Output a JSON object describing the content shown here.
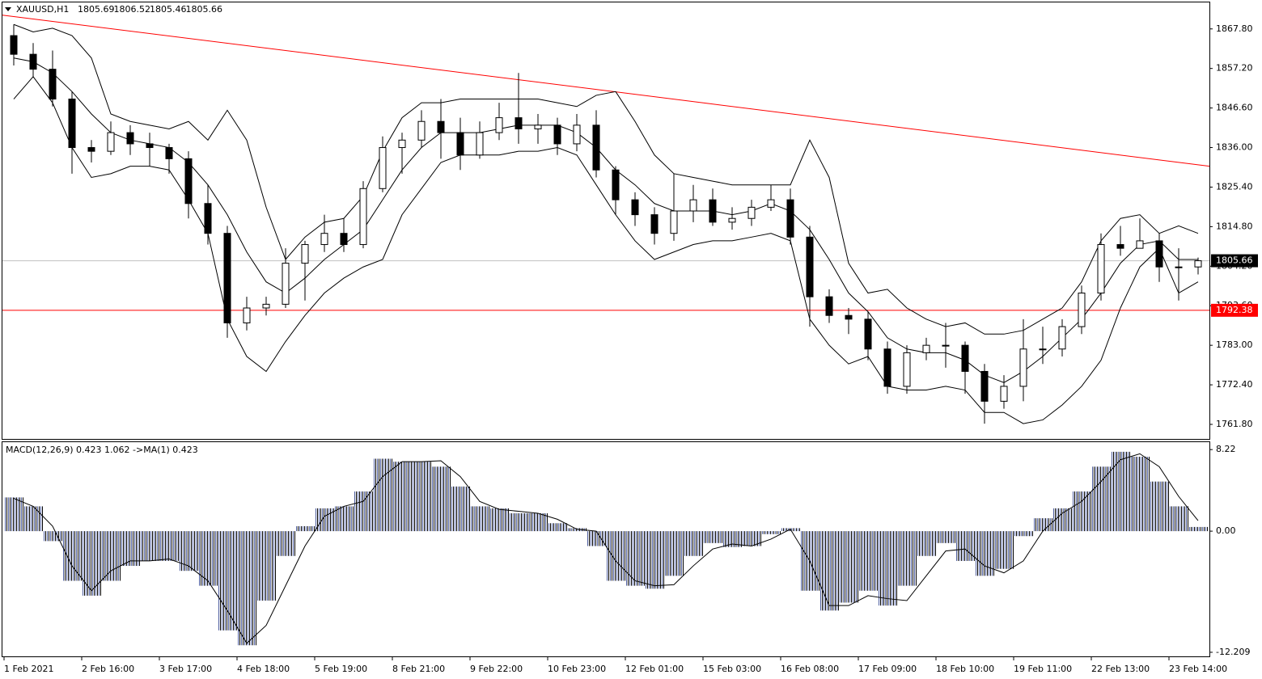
{
  "chart_data": [
    {
      "type": "candlestick",
      "symbol": "XAUUSD,H1",
      "last_bar": [
        1805.69,
        1806.52,
        1805.46,
        1805.66
      ],
      "categories": [
        "1 Feb 2021",
        null,
        null,
        null,
        "2 Feb 16:00",
        null,
        null,
        null,
        "3 Feb 17:00",
        null,
        null,
        null,
        "4 Feb 18:00",
        null,
        null,
        null,
        "5 Feb 19:00",
        null,
        null,
        null,
        "8 Feb 21:00",
        null,
        null,
        null,
        "9 Feb 22:00",
        null,
        null,
        null,
        "10 Feb 23:00",
        null,
        null,
        null,
        "12 Feb 01:00",
        null,
        null,
        null,
        "15 Feb 03:00",
        null,
        null,
        null,
        "16 Feb 08:00",
        null,
        null,
        null,
        "17 Feb 09:00",
        null,
        null,
        null,
        "18 Feb 10:00",
        null,
        null,
        null,
        "19 Feb 11:00",
        null,
        null,
        null,
        "22 Feb 13:00",
        null,
        null,
        null,
        "23 Feb 14:00",
        null
      ],
      "open": [
        1866,
        1861,
        1857,
        1849,
        1836,
        1835,
        1840,
        1837,
        1836,
        1833,
        1821,
        1813,
        1789,
        1793,
        1794,
        1805,
        1810,
        1813,
        1810,
        1825,
        1836,
        1838,
        1843,
        1840,
        1834,
        1840,
        1844,
        1841,
        1842,
        1837,
        1842,
        1830,
        1822,
        1818,
        1813,
        1819,
        1822,
        1816,
        1817,
        1820,
        1822,
        1812,
        1796,
        1791,
        1790,
        1782,
        1772,
        1781,
        1783,
        1783,
        1776,
        1768,
        1772,
        1782,
        1782,
        1788,
        1797,
        1810,
        1809,
        1811,
        1804,
        1804
      ],
      "high": [
        1869,
        1864,
        1862,
        1851,
        1838,
        1843,
        1842,
        1840,
        1837,
        1835,
        1826,
        1815,
        1796,
        1796,
        1809,
        1811,
        1818,
        1817,
        1827,
        1839,
        1840,
        1846,
        1849,
        1844,
        1843,
        1848,
        1856,
        1845,
        1844,
        1845,
        1846,
        1831,
        1824,
        1820,
        1829,
        1826,
        1825,
        1820,
        1822,
        1826,
        1825,
        1815,
        1798,
        1793,
        1792,
        1784,
        1783,
        1785,
        1789,
        1784,
        1778,
        1775,
        1790,
        1788,
        1790,
        1799,
        1813,
        1815,
        1817,
        1813,
        1809,
        1806.52
      ],
      "low": [
        1858,
        1855,
        1847,
        1829,
        1832,
        1834,
        1834,
        1831,
        1829,
        1817,
        1810,
        1785,
        1787,
        1791,
        1793,
        1795,
        1808,
        1808,
        1809,
        1824,
        1829,
        1836,
        1833,
        1830,
        1833,
        1838,
        1837,
        1837,
        1834,
        1835,
        1828,
        1818,
        1815,
        1810,
        1811,
        1816,
        1815,
        1814,
        1815,
        1819,
        1810,
        1788,
        1789,
        1786,
        1779,
        1770,
        1770,
        1779,
        1777,
        1770,
        1762,
        1766,
        1768,
        1778,
        1780,
        1786,
        1795,
        1807,
        1809,
        1800,
        1795,
        1802
      ],
      "close": [
        1861,
        1857,
        1849,
        1836,
        1835,
        1840,
        1837,
        1836,
        1833,
        1821,
        1813,
        1789,
        1793,
        1794,
        1805,
        1810,
        1813,
        1810,
        1825,
        1836,
        1838,
        1843,
        1840,
        1834,
        1840,
        1844,
        1841,
        1842,
        1837,
        1842,
        1830,
        1822,
        1818,
        1813,
        1819,
        1822,
        1816,
        1817,
        1820,
        1822,
        1812,
        1796,
        1791,
        1790,
        1782,
        1772,
        1781,
        1783,
        1783,
        1776,
        1768,
        1772,
        1782,
        1782,
        1788,
        1797,
        1810,
        1809,
        1811,
        1804,
        1804,
        1805.66
      ],
      "bands": {
        "upper": [
          1869,
          1867,
          1868,
          1866,
          1860,
          1845,
          1843,
          1842,
          1841,
          1843,
          1838,
          1846,
          1838,
          1820,
          1806,
          1812,
          1816,
          1817,
          1823,
          1835,
          1844,
          1848,
          1848,
          1849,
          1849,
          1849,
          1849,
          1849,
          1848,
          1847,
          1850,
          1851,
          1843,
          1834,
          1829,
          1828,
          1827,
          1826,
          1826,
          1826,
          1826,
          1838,
          1828,
          1805,
          1797,
          1798,
          1793,
          1790,
          1788,
          1789,
          1786,
          1786,
          1787,
          1790,
          1793,
          1800,
          1811,
          1817,
          1818,
          1813,
          1815,
          1813
        ],
        "middle": [
          1860,
          1859,
          1856,
          1851,
          1845,
          1840,
          1838,
          1837,
          1836,
          1832,
          1826,
          1818,
          1808,
          1800,
          1797,
          1801,
          1806,
          1810,
          1814,
          1822,
          1830,
          1836,
          1840,
          1840,
          1840,
          1841,
          1842,
          1842,
          1842,
          1840,
          1836,
          1830,
          1826,
          1821,
          1819,
          1819,
          1819,
          1818,
          1819,
          1821,
          1819,
          1814,
          1806,
          1797,
          1792,
          1785,
          1782,
          1781,
          1781,
          1779,
          1775,
          1773,
          1776,
          1780,
          1785,
          1790,
          1797,
          1805,
          1810,
          1811,
          1806,
          1806
        ],
        "lower": [
          1849,
          1855,
          1848,
          1836,
          1828,
          1829,
          1831,
          1831,
          1830,
          1822,
          1813,
          1790,
          1780,
          1776,
          1784,
          1791,
          1797,
          1801,
          1804,
          1806,
          1818,
          1825,
          1832,
          1834,
          1834,
          1834,
          1835,
          1835,
          1836,
          1834,
          1826,
          1818,
          1811,
          1806,
          1808,
          1810,
          1811,
          1811,
          1812,
          1813,
          1811,
          1790,
          1783,
          1778,
          1780,
          1772,
          1771,
          1771,
          1772,
          1771,
          1765,
          1765,
          1762,
          1763,
          1767,
          1772,
          1779,
          1793,
          1804,
          1809,
          1797,
          1800
        ]
      },
      "trendline": [
        1871.5,
        1831.0
      ],
      "trendline_color": "#ff0000",
      "hline": 1792.38,
      "hline_color": "#ff0000",
      "price_line": 1805.66,
      "ylim": [
        1757.9,
        1874.9
      ],
      "yticks": [
        {
          "value": 1867.8,
          "label": "1867.80"
        },
        {
          "value": 1857.2,
          "label": "1857.20"
        },
        {
          "value": 1846.6,
          "label": "1846.60"
        },
        {
          "value": 1836.0,
          "label": "1836.00"
        },
        {
          "value": 1825.4,
          "label": "1825.40"
        },
        {
          "value": 1814.8,
          "label": "1814.80"
        },
        {
          "value": 1804.2,
          "label": "1804.20"
        },
        {
          "value": 1793.6,
          "label": "1793.60"
        },
        {
          "value": 1783.0,
          "label": "1783.00"
        },
        {
          "value": 1772.4,
          "label": "1772.40"
        },
        {
          "value": 1761.8,
          "label": "1761.80"
        }
      ]
    },
    {
      "type": "bar",
      "label": "MACD(12,26,9) 0.423 1.062  ->MA(1) 0.423",
      "values": [
        3.4,
        2.5,
        -1,
        -5,
        -6.5,
        -5,
        -3.5,
        -3,
        -3,
        -4,
        -5.5,
        -10,
        -11.5,
        -7,
        -2.5,
        0.5,
        2.3,
        2.5,
        4,
        7.3,
        7,
        7,
        6.5,
        4.5,
        2.5,
        2.3,
        1.8,
        1.8,
        0.8,
        0.3,
        -1.5,
        -5,
        -5.5,
        -5.8,
        -4.5,
        -2.5,
        -1.2,
        -1.6,
        -1.5,
        -0.3,
        0.3,
        -6,
        -8,
        -7.2,
        -6,
        -7.5,
        -5.5,
        -2.5,
        -1.2,
        -3,
        -4.5,
        -3.8,
        -0.5,
        1.3,
        2.3,
        4,
        6.5,
        8,
        7.5,
        5,
        2.5,
        0.423
      ],
      "signal": [
        3.3,
        2.5,
        0.5,
        -3.5,
        -6,
        -4,
        -3,
        -3,
        -2.8,
        -3.5,
        -5,
        -8,
        -11.3,
        -9.5,
        -5.5,
        -1.5,
        1.5,
        2.5,
        3,
        5.5,
        7,
        7,
        7.1,
        5.5,
        3,
        2.2,
        2,
        1.8,
        1.2,
        0.2,
        0,
        -3,
        -5,
        -5.5,
        -5.4,
        -3.5,
        -1.8,
        -1.3,
        -1.5,
        -0.8,
        0.2,
        -3,
        -7.5,
        -7.5,
        -6.5,
        -6.8,
        -7,
        -4.5,
        -2,
        -1.8,
        -3.5,
        -4.2,
        -3,
        0,
        1.8,
        3,
        5,
        7.2,
        7.8,
        6.5,
        3.5,
        1.062
      ],
      "ylim": [
        -12.62,
        8.97
      ],
      "yticks": [
        8.22,
        {
          "value": 0,
          "label": "0.00"
        },
        -12.209
      ]
    }
  ]
}
